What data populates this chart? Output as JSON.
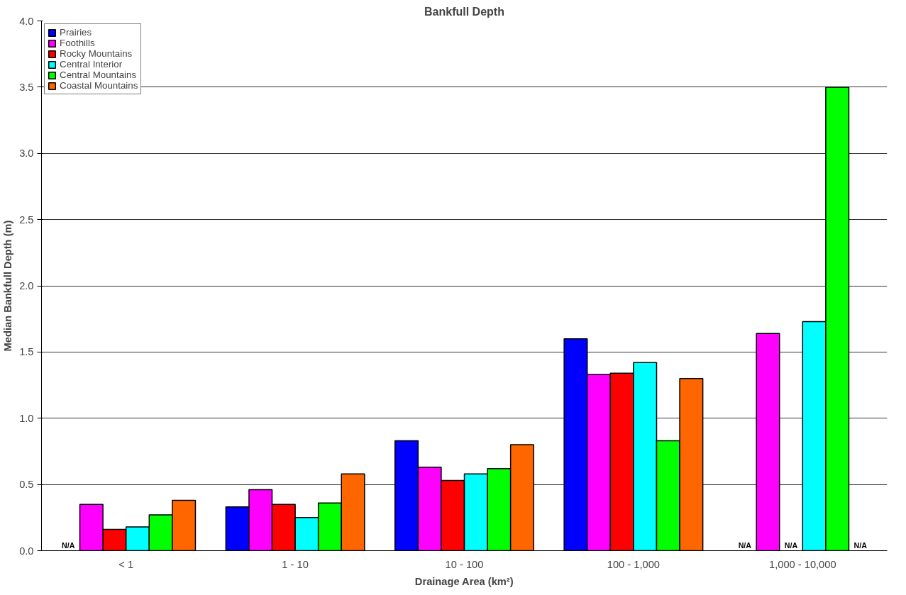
{
  "chart_data": {
    "type": "bar",
    "title": "Bankfull Depth",
    "xlabel": "Drainage Area (km²)",
    "ylabel": "Median Bankfull Depth (m)",
    "categories": [
      "< 1",
      "1 - 10",
      "10 - 100",
      "100 - 1,000",
      "1,000 - 10,000"
    ],
    "series": [
      {
        "name": "Prairies",
        "color": "#0000ff",
        "values": [
          null,
          0.33,
          0.83,
          1.6,
          null
        ],
        "value_labels": [
          "N/A",
          null,
          null,
          null,
          "N/A"
        ]
      },
      {
        "name": "Foothills",
        "color": "#ff00ff",
        "values": [
          0.35,
          0.46,
          0.63,
          1.33,
          1.64
        ]
      },
      {
        "name": "Rocky Mountains",
        "color": "#ff0000",
        "values": [
          0.16,
          0.35,
          0.53,
          1.34,
          null
        ],
        "value_labels": [
          null,
          null,
          null,
          null,
          "N/A"
        ]
      },
      {
        "name": "Central Interior",
        "color": "#00ffff",
        "values": [
          0.18,
          0.25,
          0.58,
          1.42,
          1.73
        ]
      },
      {
        "name": "Central Mountains",
        "color": "#00ff00",
        "values": [
          0.27,
          0.36,
          0.62,
          0.83,
          3.5
        ]
      },
      {
        "name": "Coastal Mountains",
        "color": "#ff6600",
        "values": [
          0.38,
          0.58,
          0.8,
          1.3,
          null
        ],
        "value_labels": [
          null,
          null,
          null,
          null,
          "N/A"
        ]
      }
    ],
    "ylim": [
      0,
      4
    ],
    "yticks": [
      {
        "value": 0,
        "label": "0.0"
      },
      {
        "value": 0.5,
        "label": "0.5"
      },
      {
        "value": 1,
        "label": "1.0"
      },
      {
        "value": 1.5,
        "label": "1.5"
      },
      {
        "value": 2,
        "label": "2.0"
      },
      {
        "value": 2.5,
        "label": "2.5"
      },
      {
        "value": 3,
        "label": "3.0"
      },
      {
        "value": 3.5,
        "label": "3.5"
      },
      {
        "value": 4,
        "label": "4.0"
      }
    ],
    "grid": "y",
    "legend": "top left"
  }
}
